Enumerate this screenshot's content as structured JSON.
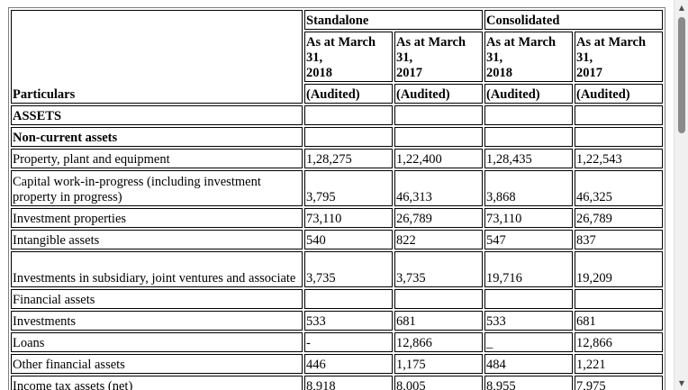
{
  "table": {
    "particulars_label": "Particulars",
    "group_headers": [
      "Standalone",
      "Consolidated"
    ],
    "period_headers": [
      "As at March 31, 2018",
      "As at March 31, 2017",
      "As at March 31, 2018",
      "As at March 31, 2017"
    ],
    "period_lines": [
      [
        "As at March",
        "31,",
        "2018"
      ],
      [
        "As at March",
        "31,",
        "2017"
      ],
      [
        "As at March",
        "31,",
        "2018"
      ],
      [
        "As at March",
        "31,",
        "2017"
      ]
    ],
    "audit_labels": [
      "(Audited)",
      "(Audited)",
      "(Audited)",
      "(Audited)"
    ],
    "rows": [
      {
        "label": "ASSETS",
        "values": [
          "",
          "",
          "",
          ""
        ]
      },
      {
        "label": "Non-current assets",
        "values": [
          "",
          "",
          "",
          ""
        ]
      },
      {
        "label": "Property, plant and equipment",
        "values": [
          "1,28,275",
          "1,22,400",
          "1,28,435",
          "1,22,543"
        ]
      },
      {
        "label": "Capital work-in-progress (including investment property in progress)",
        "values": [
          "3,795",
          "46,313",
          "3,868",
          "46,325"
        ]
      },
      {
        "label": "Investment properties",
        "values": [
          "73,110",
          "26,789",
          "73,110",
          "26,789"
        ]
      },
      {
        "label": "Intangible assets",
        "values": [
          "540",
          "822",
          "547",
          "837"
        ]
      },
      {
        "label": "Investments in subsidiary, joint ventures and associate",
        "values": [
          "3,735",
          "3,735",
          "19,716",
          "19,209"
        ]
      },
      {
        "label": "Financial assets",
        "values": [
          "",
          "",
          "",
          ""
        ]
      },
      {
        "label": "Investments",
        "values": [
          "533",
          "681",
          "533",
          "681"
        ]
      },
      {
        "label": "Loans",
        "values": [
          "-",
          "12,866",
          "_",
          "12,866"
        ]
      },
      {
        "label": "Other financial assets",
        "values": [
          "446",
          "1,175",
          "484",
          "1,221"
        ]
      },
      {
        "label": "Income tax assets (net)",
        "values": [
          "8,918",
          "8,005",
          "8,955",
          "7,975"
        ]
      }
    ]
  },
  "scrollbar": {
    "up_icon": "triangle-up",
    "down_icon": "triangle-down"
  }
}
